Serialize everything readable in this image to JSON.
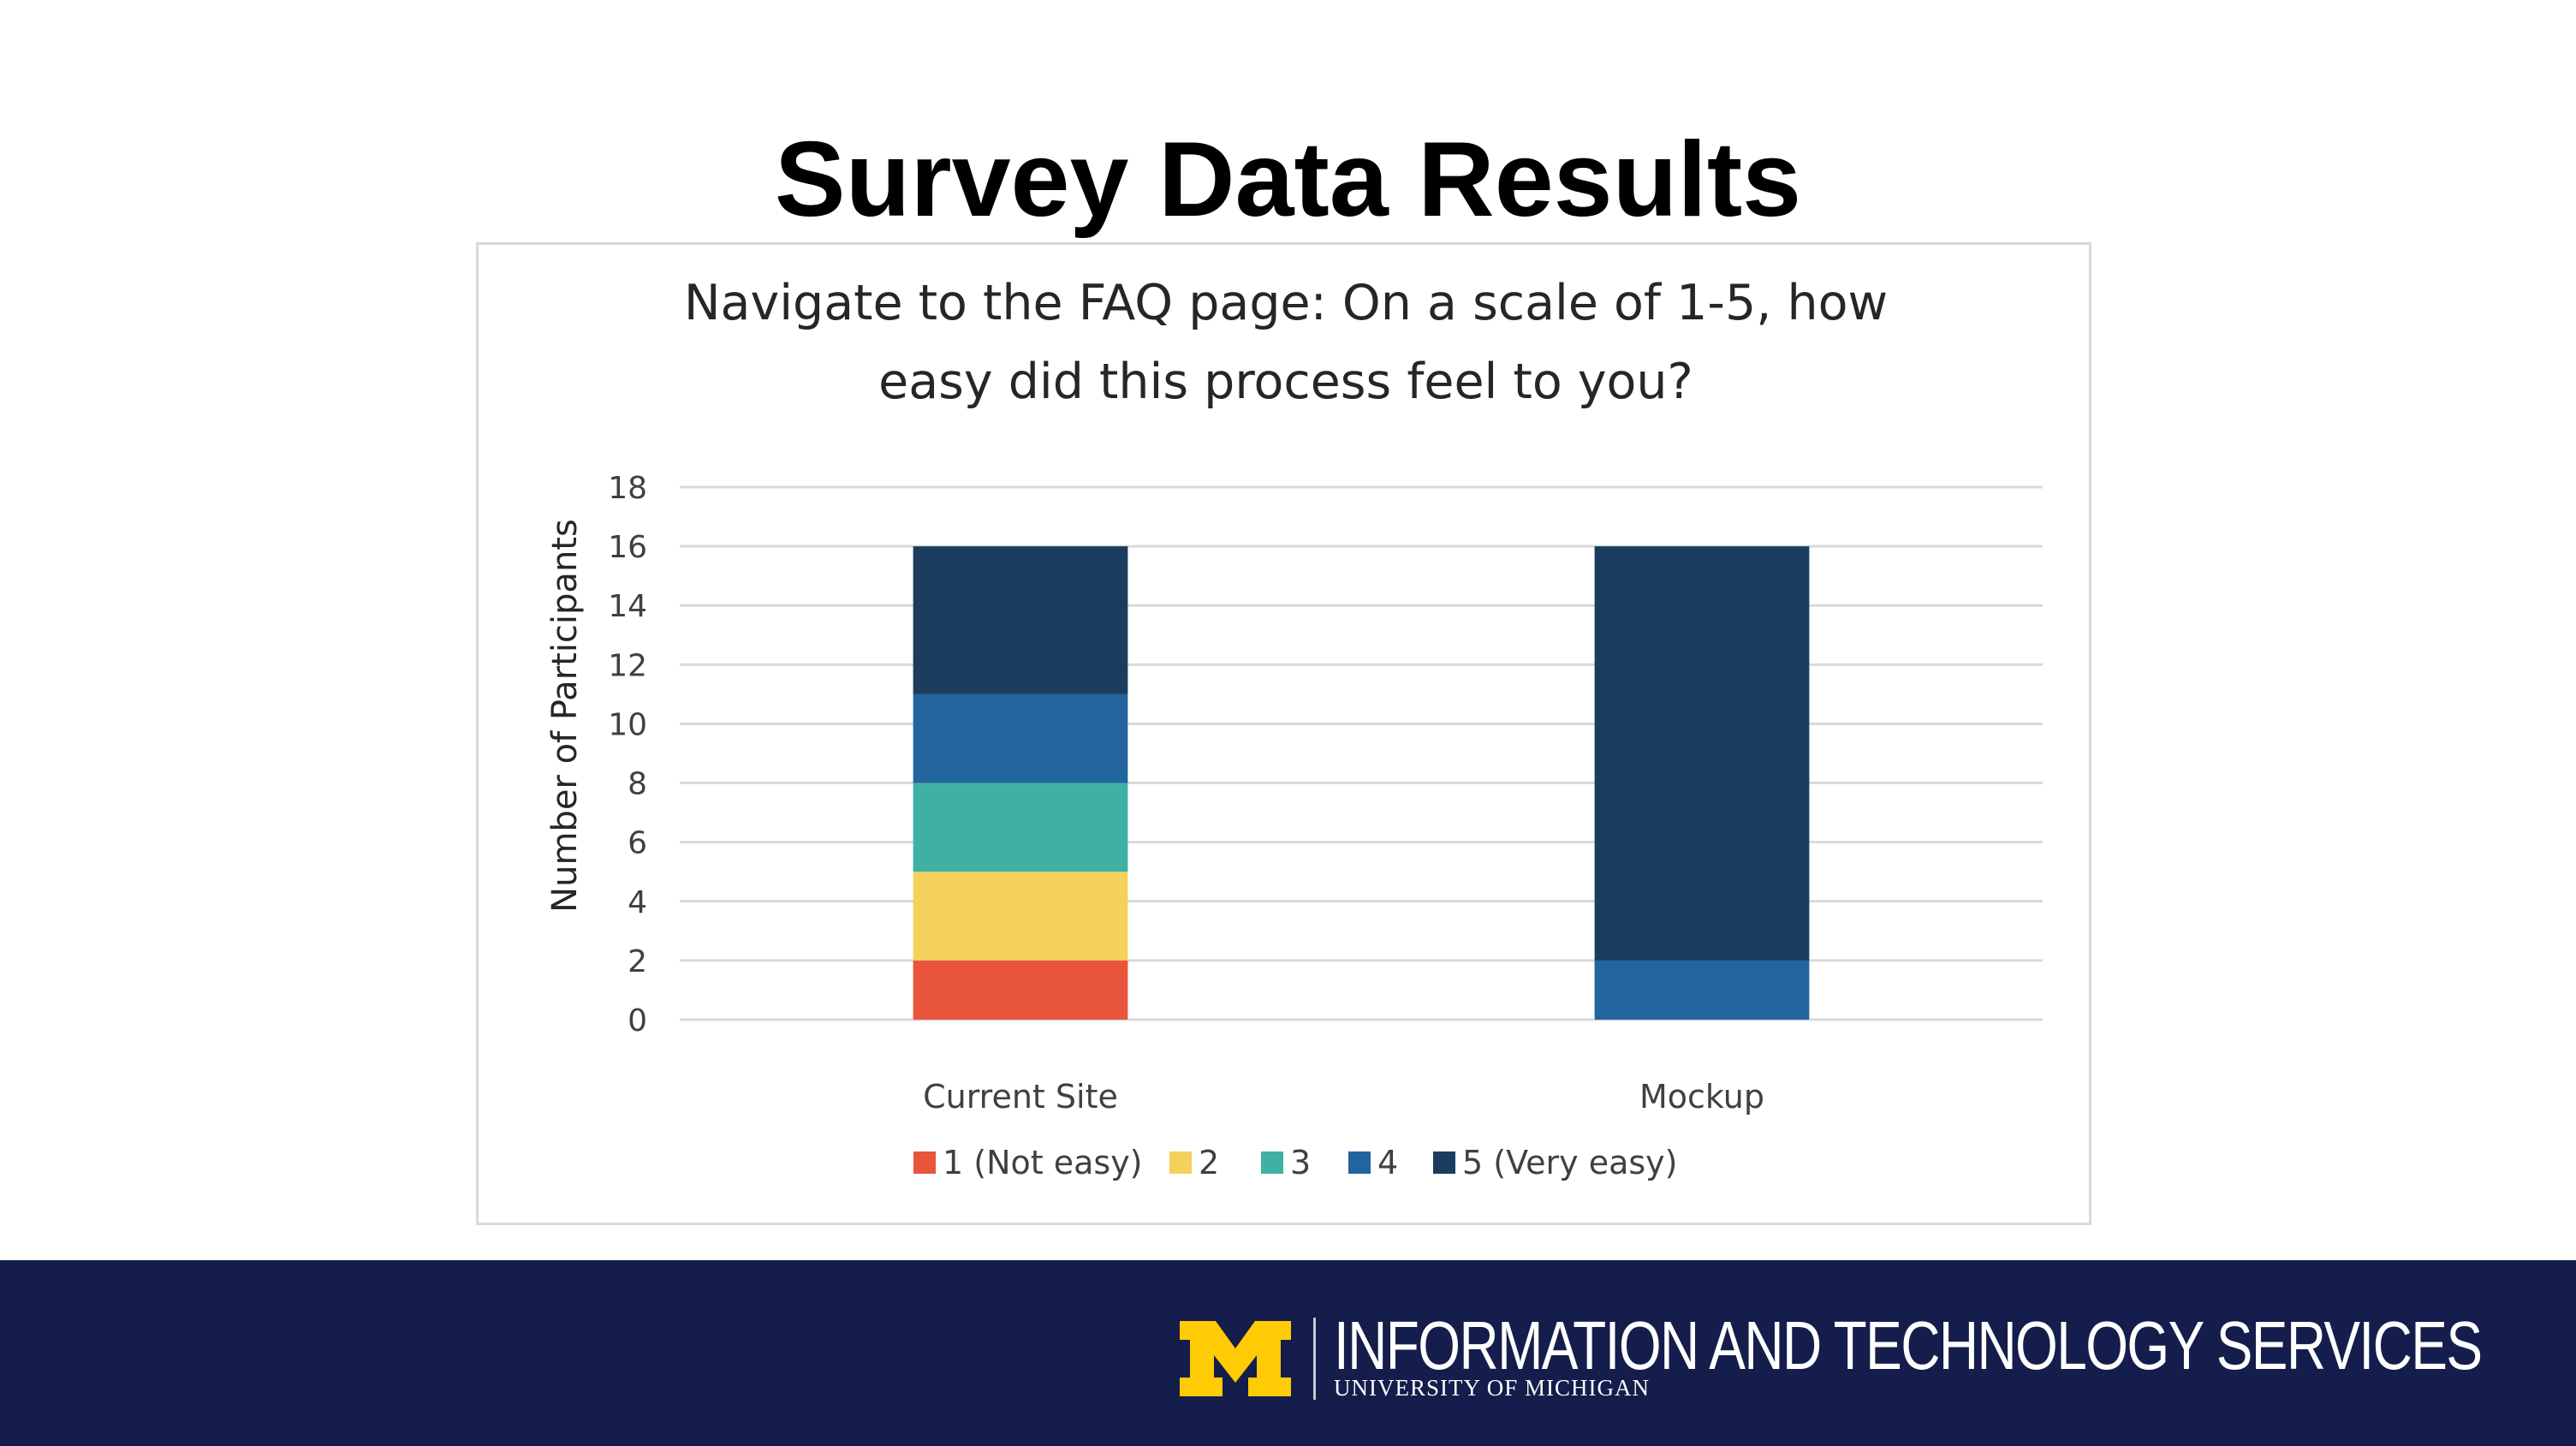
{
  "slide": {
    "title": "Survey Data Results"
  },
  "chart_data": {
    "type": "bar",
    "stacked": true,
    "title_lines": [
      "Navigate to the FAQ page: On a scale of 1-5, how",
      "easy did this process feel to you?"
    ],
    "xlabel": "",
    "ylabel": "Number of Participants",
    "categories": [
      "Current Site",
      "Mockup"
    ],
    "ylim": [
      0,
      18
    ],
    "yticks": [
      0,
      2,
      4,
      6,
      8,
      10,
      12,
      14,
      16,
      18
    ],
    "grid": true,
    "legend_position": "bottom",
    "series": [
      {
        "name": "1 (Not easy)",
        "color": "#e8553a",
        "values": [
          2,
          0
        ]
      },
      {
        "name": "2",
        "color": "#f3d15c",
        "values": [
          3,
          0
        ]
      },
      {
        "name": "3",
        "color": "#3fb0a4",
        "values": [
          3,
          0
        ]
      },
      {
        "name": "4",
        "color": "#22649e",
        "values": [
          3,
          2
        ]
      },
      {
        "name": "5 (Very easy)",
        "color": "#1a3d5e",
        "values": [
          5,
          14
        ]
      }
    ]
  },
  "footer": {
    "background": "#141d4b",
    "logo_color": "#ffcb05",
    "logo_icon": "block-m-logo",
    "unit_name": "INFORMATION AND TECHNOLOGY SERVICES",
    "institution": "UNIVERSITY OF MICHIGAN"
  }
}
